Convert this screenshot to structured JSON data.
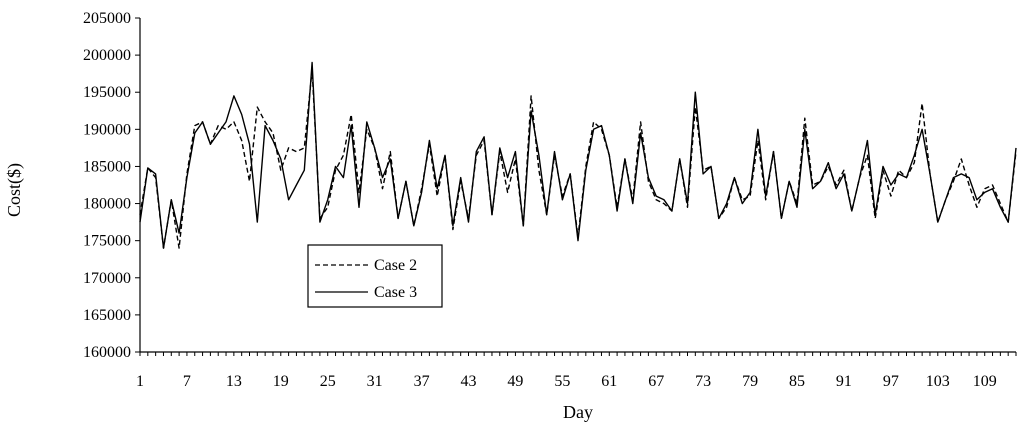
{
  "chart_data": {
    "type": "line",
    "xlabel": "Day",
    "ylabel": "Cost($)",
    "ylim": [
      160000,
      205000
    ],
    "yticks": [
      160000,
      165000,
      170000,
      175000,
      180000,
      185000,
      190000,
      195000,
      200000,
      205000
    ],
    "xlim": [
      1,
      113
    ],
    "xticks": [
      1,
      7,
      13,
      19,
      25,
      31,
      37,
      43,
      49,
      55,
      61,
      67,
      73,
      79,
      85,
      91,
      97,
      103,
      109
    ],
    "grid": false,
    "legend_position": "left-middle",
    "x": [
      1,
      2,
      3,
      4,
      5,
      6,
      7,
      8,
      9,
      10,
      11,
      12,
      13,
      14,
      15,
      16,
      17,
      18,
      19,
      20,
      21,
      22,
      23,
      24,
      25,
      26,
      27,
      28,
      29,
      30,
      31,
      32,
      33,
      34,
      35,
      36,
      37,
      38,
      39,
      40,
      41,
      42,
      43,
      44,
      45,
      46,
      47,
      48,
      49,
      50,
      51,
      52,
      53,
      54,
      55,
      56,
      57,
      58,
      59,
      60,
      61,
      62,
      63,
      64,
      65,
      66,
      67,
      68,
      69,
      70,
      71,
      72,
      73,
      74,
      75,
      76,
      77,
      78,
      79,
      80,
      81,
      82,
      83,
      84,
      85,
      86,
      87,
      88,
      89,
      90,
      91,
      92,
      93,
      94,
      95,
      96,
      97,
      98,
      99,
      100,
      101,
      102,
      103,
      104,
      105,
      106,
      107,
      108,
      109,
      110,
      111,
      112,
      113
    ],
    "series": [
      {
        "name": "Case 2",
        "style": "dashed",
        "color": "#000000",
        "values": [
          178500,
          184800,
          183500,
          174000,
          180500,
          174000,
          184000,
          190500,
          191000,
          188000,
          190500,
          190000,
          191000,
          188500,
          183000,
          193000,
          191000,
          189500,
          184500,
          187500,
          187000,
          187500,
          198000,
          178000,
          179500,
          184500,
          186500,
          192000,
          181500,
          190000,
          187500,
          182000,
          187000,
          178000,
          183000,
          177000,
          182000,
          188000,
          181000,
          186500,
          176500,
          183000,
          178000,
          186500,
          188500,
          178500,
          187000,
          181500,
          186000,
          177000,
          194500,
          184500,
          178500,
          186500,
          181000,
          184000,
          175500,
          185000,
          191000,
          190000,
          186500,
          179500,
          186000,
          180500,
          191000,
          183000,
          180500,
          180000,
          179000,
          186000,
          179500,
          193000,
          184500,
          185000,
          178000,
          179500,
          183500,
          180500,
          181000,
          188500,
          180500,
          187000,
          178000,
          183000,
          180000,
          191500,
          182500,
          183000,
          185000,
          182500,
          184500,
          179000,
          183500,
          186500,
          178000,
          184500,
          181000,
          184500,
          183500,
          185500,
          193500,
          184000,
          177500,
          180500,
          183000,
          186000,
          182500,
          179500,
          182000,
          182500,
          180000,
          177500,
          187000
        ]
      },
      {
        "name": "Case 3",
        "style": "solid",
        "color": "#000000",
        "values": [
          177500,
          184800,
          184000,
          174000,
          180500,
          176000,
          183500,
          189500,
          191000,
          188000,
          189500,
          191000,
          194500,
          192000,
          188000,
          177500,
          190500,
          188500,
          186000,
          180500,
          182500,
          184500,
          199000,
          177500,
          180500,
          185000,
          183500,
          190500,
          179500,
          191000,
          187500,
          183500,
          186000,
          178000,
          183000,
          177000,
          181500,
          188500,
          182000,
          186500,
          177000,
          183500,
          177500,
          187000,
          189000,
          178500,
          187500,
          183500,
          187000,
          177000,
          192500,
          186500,
          178500,
          187000,
          180500,
          184000,
          175000,
          184500,
          190000,
          190500,
          186500,
          179000,
          186000,
          180000,
          189500,
          183500,
          181000,
          180500,
          179000,
          186000,
          180000,
          195000,
          184000,
          185000,
          178000,
          180000,
          183500,
          180000,
          181500,
          190000,
          181000,
          187000,
          178000,
          183000,
          179500,
          190000,
          182000,
          183000,
          185500,
          182000,
          184000,
          179000,
          183500,
          188500,
          178500,
          185000,
          182500,
          184000,
          183500,
          186500,
          190000,
          184000,
          177500,
          180500,
          183500,
          184000,
          183500,
          180500,
          181500,
          182000,
          179500,
          177500,
          187500
        ]
      }
    ]
  }
}
